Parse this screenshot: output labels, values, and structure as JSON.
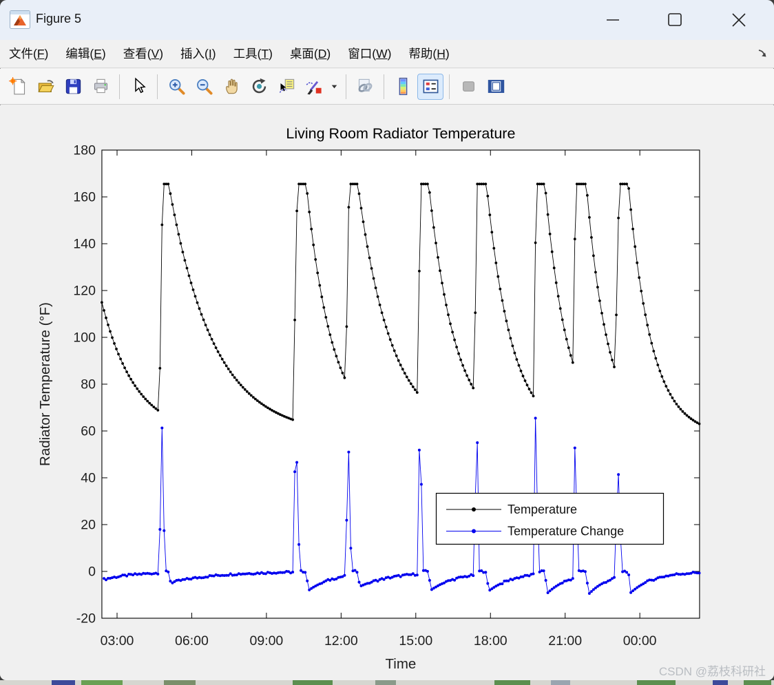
{
  "window": {
    "title": "Figure 5"
  },
  "titlebar": {
    "controls": [
      "minimize",
      "maximize",
      "close"
    ]
  },
  "menubar": {
    "items": [
      "文件(F)",
      "编辑(E)",
      "查看(V)",
      "插入(I)",
      "工具(T)",
      "桌面(D)",
      "窗口(W)",
      "帮助(H)"
    ],
    "dock_icon": "dock-arrow-icon"
  },
  "toolbar": {
    "items": [
      "new-figure",
      "open-file",
      "save-figure",
      "print-figure",
      "edit-plot",
      "zoom-in",
      "zoom-out",
      "pan",
      "rotate-3d",
      "data-cursor",
      "brush-data",
      "brush-dropdown",
      "link-plot",
      "insert-colorbar",
      "insert-legend",
      "hide-plot-tools",
      "show-plot-tools-dock"
    ],
    "active_item": "insert-legend",
    "disabled_item": "hide-plot-tools"
  },
  "watermark": {
    "text": "CSDN @荔枝科研社",
    "color": "#b9bdc2"
  },
  "chart_data": {
    "type": "line",
    "title": "Living Room Radiator Temperature",
    "xlabel": "Time",
    "ylabel": "Radiator Temperature (°F)",
    "x_axis": {
      "range_hours": [
        2.39,
        26.4
      ],
      "ticks": [
        {
          "t": 3,
          "label": "03:00"
        },
        {
          "t": 6,
          "label": "06:00"
        },
        {
          "t": 9,
          "label": "09:00"
        },
        {
          "t": 12,
          "label": "12:00"
        },
        {
          "t": 15,
          "label": "15:00"
        },
        {
          "t": 18,
          "label": "18:00"
        },
        {
          "t": 21,
          "label": "21:00"
        },
        {
          "t": 24,
          "label": "00:00"
        }
      ]
    },
    "y_axis": {
      "lim": [
        -20,
        180
      ],
      "ticks": [
        -20,
        0,
        20,
        40,
        60,
        80,
        100,
        120,
        140,
        160,
        180
      ]
    },
    "legend": {
      "position": "inside-lower-right-of-center",
      "border": "#000000",
      "background": "#ffffff"
    },
    "series": [
      {
        "name": "Temperature",
        "color": "#000000",
        "marker": "point"
      },
      {
        "name": "Temperature Change",
        "color": "#0000ee",
        "marker": "point",
        "definition": "first-difference-of-temperature-per-sample"
      }
    ],
    "sample_interval_hours": 0.0833333,
    "noise_amp": 0.45,
    "temperature_profile": {
      "ambient_f": 58,
      "peak_f": 165.5,
      "initial": {
        "t": 2.39,
        "temp": 114.9
      },
      "events": [
        {
          "t_on": 4.66,
          "pre_min": 68.7,
          "rise": [
            86.8,
            148.1
          ],
          "plateau_until": 5.07
        },
        {
          "t_on": 10.12,
          "pre_min": 64.6,
          "rise": [
            107.4,
            154.0
          ],
          "plateau_until": 10.6
        },
        {
          "t_on": 12.22,
          "pre_min": 80.9,
          "rise": [
            104.6,
            155.6
          ],
          "plateau_until": 12.67
        },
        {
          "t_on": 15.12,
          "pre_min": 75.6,
          "rise": [
            128.3
          ],
          "plateau_until": 15.52
        },
        {
          "t_on": 17.38,
          "pre_min": 77.0,
          "rise": [
            110.5
          ],
          "plateau_until": 17.84
        },
        {
          "t_on": 19.78,
          "pre_min": 74.0,
          "rise": [
            140.4
          ],
          "plateau_until": 20.19
        },
        {
          "t_on": 21.38,
          "pre_min": 86.8,
          "rise": [
            142.0
          ],
          "plateau_until": 21.85
        },
        {
          "t_on": 22.99,
          "pre_min": 86.8,
          "rise": [
            109.6,
            151.0
          ],
          "plateau_until": 23.54
        }
      ],
      "end": {
        "t": 26.4,
        "temp": 63.0
      }
    }
  }
}
